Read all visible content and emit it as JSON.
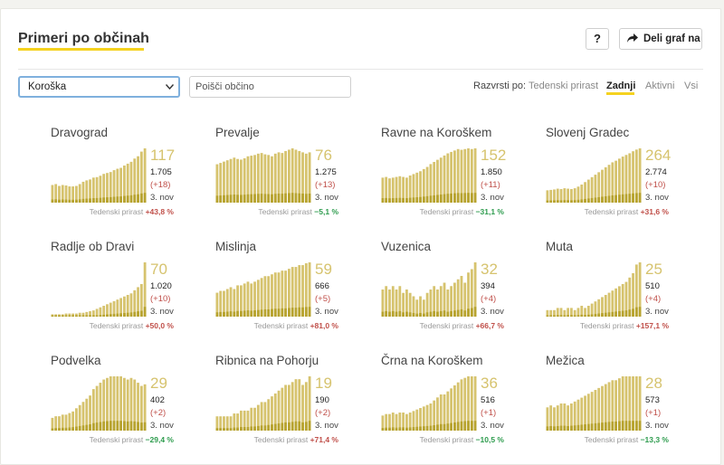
{
  "header": {
    "title": "Primeri po občinah",
    "help_label": "?",
    "share_label": "Deli graf na"
  },
  "filters": {
    "region_selected": "Koroška",
    "search_placeholder": "Poišči občino",
    "sort_label": "Razvrsti po:",
    "sort_options": [
      "Tedenski prirast",
      "Zadnji",
      "Aktivni",
      "Vsi"
    ],
    "sort_active": "Zadnji"
  },
  "weekly_label": "Tedenski prirast",
  "colors": {
    "accent": "#f5d21f",
    "bar": "#d6c36e",
    "bar_dark": "#b7a32f",
    "positive": "#c0504a",
    "negative": "#2e9c4e"
  },
  "municipalities": [
    {
      "name": "Dravograd",
      "active": "117",
      "total": "1.705",
      "delta": "(+18)",
      "date": "3. nov",
      "weekly": "+43,8 %",
      "trend": "up",
      "series": [
        38,
        40,
        36,
        38,
        37,
        35,
        35,
        36,
        40,
        45,
        48,
        50,
        54,
        55,
        58,
        62,
        64,
        66,
        70,
        73,
        75,
        80,
        84,
        88,
        95,
        100,
        110,
        117
      ]
    },
    {
      "name": "Prevalje",
      "active": "76",
      "total": "1.275",
      "delta": "(+13)",
      "date": "3. nov",
      "weekly": "−5,1 %",
      "trend": "down",
      "series": [
        58,
        60,
        62,
        64,
        66,
        68,
        66,
        65,
        67,
        70,
        71,
        72,
        74,
        75,
        73,
        72,
        70,
        74,
        76,
        75,
        78,
        80,
        82,
        80,
        78,
        76,
        74,
        76
      ]
    },
    {
      "name": "Ravne na Koroškem",
      "active": "152",
      "total": "1.850",
      "delta": "(+11)",
      "date": "3. nov",
      "weekly": "−31,1 %",
      "trend": "down",
      "series": [
        70,
        72,
        68,
        70,
        72,
        74,
        72,
        70,
        76,
        80,
        84,
        88,
        94,
        100,
        108,
        114,
        120,
        126,
        132,
        138,
        142,
        146,
        150,
        148,
        150,
        152,
        150,
        152
      ]
    },
    {
      "name": "Slovenj Gradec",
      "active": "264",
      "total": "2.774",
      "delta": "(+10)",
      "date": "3. nov",
      "weekly": "+31,6 %",
      "trend": "up",
      "series": [
        60,
        62,
        64,
        68,
        66,
        70,
        68,
        66,
        70,
        78,
        88,
        100,
        112,
        124,
        136,
        148,
        160,
        172,
        184,
        196,
        204,
        214,
        224,
        232,
        240,
        250,
        258,
        264
      ]
    },
    {
      "name": "Radlje ob Dravi",
      "active": "70",
      "total": "1.020",
      "delta": "(+10)",
      "date": "3. nov",
      "weekly": "+50,0 %",
      "trend": "up",
      "series": [
        3,
        3,
        3,
        3,
        4,
        4,
        4,
        4,
        5,
        5,
        6,
        7,
        8,
        10,
        12,
        14,
        16,
        18,
        20,
        22,
        24,
        26,
        28,
        30,
        34,
        38,
        42,
        70
      ]
    },
    {
      "name": "Mislinja",
      "active": "59",
      "total": "666",
      "delta": "(+5)",
      "date": "3. nov",
      "weekly": "+81,0 %",
      "trend": "up",
      "series": [
        26,
        28,
        28,
        30,
        32,
        30,
        34,
        34,
        36,
        38,
        36,
        38,
        40,
        42,
        44,
        44,
        46,
        48,
        48,
        50,
        50,
        52,
        54,
        54,
        56,
        56,
        58,
        59
      ]
    },
    {
      "name": "Vuzenica",
      "active": "32",
      "total": "394",
      "delta": "(+4)",
      "date": "3. nov",
      "weekly": "+66,7 %",
      "trend": "up",
      "series": [
        16,
        18,
        16,
        18,
        16,
        18,
        14,
        16,
        14,
        12,
        10,
        12,
        10,
        14,
        16,
        18,
        16,
        18,
        20,
        16,
        18,
        20,
        22,
        24,
        20,
        26,
        28,
        32
      ]
    },
    {
      "name": "Muta",
      "active": "25",
      "total": "510",
      "delta": "(+4)",
      "date": "3. nov",
      "weekly": "+157,1 %",
      "trend": "up",
      "series": [
        3,
        3,
        3,
        4,
        4,
        3,
        4,
        4,
        3,
        4,
        5,
        4,
        5,
        6,
        7,
        8,
        9,
        10,
        11,
        12,
        13,
        14,
        15,
        16,
        18,
        20,
        24,
        25
      ]
    },
    {
      "name": "Podvelka",
      "active": "29",
      "total": "402",
      "delta": "(+2)",
      "date": "3. nov",
      "weekly": "−29,4 %",
      "trend": "down",
      "series": [
        8,
        9,
        9,
        10,
        10,
        11,
        12,
        14,
        16,
        18,
        20,
        22,
        26,
        28,
        30,
        32,
        33,
        34,
        34,
        34,
        34,
        33,
        32,
        33,
        32,
        30,
        28,
        29
      ]
    },
    {
      "name": "Ribnica na Pohorju",
      "active": "19",
      "total": "190",
      "delta": "(+2)",
      "date": "3. nov",
      "weekly": "+71,4 %",
      "trend": "up",
      "series": [
        5,
        5,
        5,
        5,
        5,
        6,
        6,
        7,
        7,
        7,
        8,
        8,
        9,
        10,
        10,
        11,
        12,
        13,
        14,
        15,
        16,
        16,
        17,
        18,
        18,
        16,
        17,
        19
      ]
    },
    {
      "name": "Črna na Koroškem",
      "active": "36",
      "total": "516",
      "delta": "(+1)",
      "date": "3. nov",
      "weekly": "−10,5 %",
      "trend": "down",
      "series": [
        10,
        11,
        11,
        12,
        11,
        12,
        12,
        11,
        12,
        13,
        14,
        15,
        16,
        17,
        18,
        20,
        22,
        24,
        24,
        26,
        28,
        30,
        32,
        34,
        35,
        36,
        36,
        36
      ]
    },
    {
      "name": "Mežica",
      "active": "28",
      "total": "573",
      "delta": "(+1)",
      "date": "3. nov",
      "weekly": "−13,3 %",
      "trend": "down",
      "series": [
        12,
        13,
        12,
        13,
        14,
        14,
        13,
        14,
        15,
        16,
        17,
        18,
        19,
        20,
        21,
        22,
        23,
        24,
        25,
        26,
        26,
        27,
        28,
        28,
        28,
        28,
        28,
        28
      ]
    }
  ]
}
